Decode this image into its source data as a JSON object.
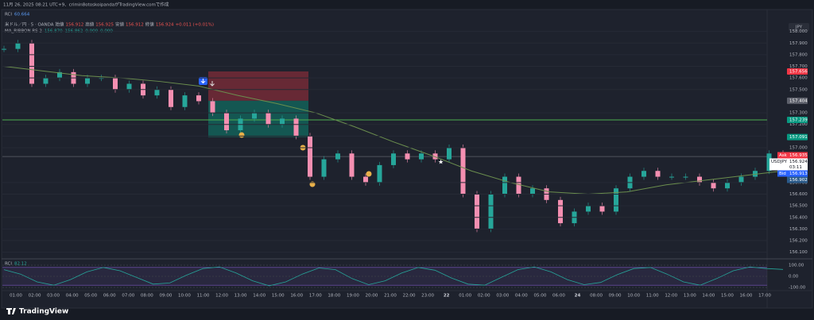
{
  "header": {
    "caption": "11月 26, 2025 08:21 UTC+9、crimin8otoskoipandaがTradingView.comで作成"
  },
  "top_indicator": {
    "name": "RCI",
    "value": "60.664"
  },
  "legend": {
    "symbol": "米ドル／円 · 5 · OANDA",
    "open_label": "始値",
    "open": "156.912",
    "high_label": "高値",
    "high": "156.925",
    "low_label": "安値",
    "low": "156.912",
    "close_label": "終値",
    "close": "156.924",
    "change": "+0.011 (+0.01%)",
    "ma_name": "MA_RIBBON RS 2",
    "ma_values": [
      "156.870",
      "156.862",
      "0.000",
      "0.000"
    ]
  },
  "currency": "JPY",
  "price_axis": {
    "range": [
      156.05,
      158.1
    ],
    "ticks": [
      "158.000",
      "157.900",
      "157.800",
      "157.700",
      "157.600",
      "157.500",
      "157.300",
      "157.200",
      "157.100",
      "157.000",
      "156.700",
      "156.600",
      "156.500",
      "156.400",
      "156.300",
      "156.200",
      "156.100"
    ]
  },
  "badges": [
    {
      "label": "157.656",
      "kind": "red"
    },
    {
      "label": "157.404",
      "kind": "gray"
    },
    {
      "label": "157.239",
      "kind": "green"
    },
    {
      "label": "157.091",
      "kind": "green"
    }
  ],
  "quote": {
    "ask_label": "Ask",
    "ask": "156.935",
    "symbol": "USDJPY",
    "last": "156.924",
    "countdown": "03:11",
    "bid_label": "Bid",
    "bid": "156.913",
    "ma": "156.902"
  },
  "price_series": [
    157.85,
    157.9,
    157.55,
    157.6,
    157.65,
    157.55,
    157.6,
    157.6,
    157.5,
    157.55,
    157.45,
    157.5,
    157.35,
    157.45,
    157.4,
    157.3,
    157.15,
    157.25,
    157.3,
    157.2,
    157.25,
    157.1,
    156.75,
    156.9,
    156.95,
    156.75,
    156.7,
    156.85,
    156.95,
    156.9,
    156.95,
    156.9,
    157.0,
    156.6,
    156.3,
    156.6,
    156.75,
    156.6,
    156.65,
    156.55,
    156.35,
    156.45,
    156.5,
    156.45,
    156.65,
    156.75,
    156.8,
    156.75,
    156.75,
    156.75,
    156.7,
    156.65,
    156.7,
    156.75,
    156.8,
    156.95,
    156.92
  ],
  "ma_series": [
    157.7,
    157.66,
    157.62,
    157.6,
    157.57,
    157.53,
    157.45,
    157.38,
    157.3,
    157.18,
    157.05,
    156.93,
    156.8,
    156.7,
    156.62,
    156.6,
    156.62,
    156.68,
    156.72,
    156.76,
    156.8
  ],
  "rci": {
    "name": "RCI",
    "value": "82.12",
    "ticks": [
      "100.00",
      "0.00",
      "-100.00"
    ],
    "values": [
      60,
      20,
      -50,
      -80,
      -30,
      40,
      80,
      50,
      -10,
      -70,
      -60,
      10,
      70,
      85,
      30,
      -40,
      -85,
      -50,
      20,
      75,
      60,
      -20,
      -75,
      -40,
      30,
      80,
      55,
      -15,
      -70,
      -80,
      -10,
      60,
      85,
      40,
      -30,
      -75,
      -55,
      15,
      70,
      80,
      20,
      -50,
      -80,
      -20,
      50,
      85,
      70,
      62
    ]
  },
  "time_axis": [
    "01:00",
    "02:00",
    "03:00",
    "04:00",
    "05:00",
    "06:00",
    "07:00",
    "08:00",
    "09:00",
    "10:00",
    "11:00",
    "12:00",
    "13:00",
    "14:00",
    "15:00",
    "16:00",
    "17:00",
    "18:00",
    "19:00",
    "20:00",
    "21:00",
    "22:00",
    "23:00",
    "22",
    "01:00",
    "02:00",
    "03:00",
    "04:00",
    "05:00",
    "06:00",
    "24",
    "08:00",
    "09:00",
    "10:00",
    "11:00",
    "12:00",
    "13:00",
    "14:00",
    "15:00",
    "16:00",
    "17:00"
  ],
  "brand": "TradingView"
}
